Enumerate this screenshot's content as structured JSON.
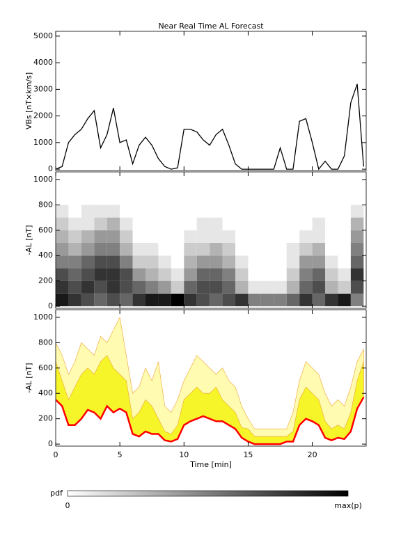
{
  "chart_data": [
    {
      "type": "line",
      "title": "Near Real Time AL Forecast",
      "ylabel": "VBs [nT×km/s]",
      "color": "#000000",
      "xlim": [
        0,
        24.2
      ],
      "xticks": [
        0,
        5,
        10,
        15,
        20
      ],
      "ylim": [
        -50,
        5180
      ],
      "yticks": [
        0,
        1000,
        2000,
        3000,
        4000,
        5000
      ],
      "x": [
        0,
        0.5,
        1,
        1.5,
        2,
        2.5,
        3,
        3.5,
        4,
        4.5,
        5,
        5.5,
        6,
        6.5,
        7,
        7.5,
        8,
        8.5,
        9,
        9.5,
        10,
        10.5,
        11,
        11.5,
        12,
        12.5,
        13,
        13.5,
        14,
        14.5,
        15,
        15.5,
        16,
        16.5,
        17,
        17.5,
        18,
        18.5,
        19,
        19.5,
        20,
        20.5,
        21,
        21.5,
        22,
        22.5,
        23,
        23.5,
        24
      ],
      "values": [
        0,
        100,
        1000,
        1300,
        1500,
        1900,
        2200,
        800,
        1300,
        2300,
        1000,
        1100,
        200,
        900,
        1200,
        900,
        400,
        100,
        0,
        50,
        1500,
        1500,
        1400,
        1100,
        900,
        1300,
        1500,
        900,
        200,
        0,
        0,
        0,
        0,
        0,
        0,
        800,
        0,
        0,
        1800,
        1900,
        1000,
        0,
        300,
        0,
        0,
        500,
        2500,
        3200,
        100
      ]
    },
    {
      "type": "heatmap",
      "ylabel": "-AL [nT]",
      "xlim": [
        0,
        24.2
      ],
      "xticks": [
        0,
        5,
        10,
        15,
        20
      ],
      "ylim": [
        -16,
        1060
      ],
      "yticks": [
        0,
        200,
        400,
        600,
        800,
        1000
      ],
      "x_bins": [
        0,
        1,
        2,
        3,
        4,
        5,
        6,
        7,
        8,
        9,
        10,
        11,
        12,
        13,
        14,
        15,
        16,
        17,
        18,
        19,
        20,
        21,
        22,
        23,
        24
      ],
      "y_bins": [
        0,
        100,
        200,
        300,
        400,
        500,
        600,
        700,
        800
      ],
      "z": [
        [
          0.9,
          0.8,
          0.7,
          0.6,
          0.7,
          0.6,
          0.8,
          0.9,
          0.9,
          1.0,
          0.8,
          0.7,
          0.6,
          0.7,
          0.8,
          0.5,
          0.5,
          0.5,
          0.6,
          0.8,
          0.6,
          0.8,
          0.9,
          0.5
        ],
        [
          0.8,
          0.7,
          0.8,
          0.7,
          0.8,
          0.7,
          0.6,
          0.5,
          0.4,
          0.2,
          0.6,
          0.7,
          0.7,
          0.6,
          0.3,
          0.1,
          0.1,
          0.1,
          0.3,
          0.6,
          0.7,
          0.3,
          0.2,
          0.7
        ],
        [
          0.7,
          0.6,
          0.7,
          0.8,
          0.8,
          0.7,
          0.4,
          0.3,
          0.2,
          0.1,
          0.4,
          0.6,
          0.6,
          0.5,
          0.2,
          0,
          0,
          0,
          0.2,
          0.5,
          0.6,
          0.2,
          0.1,
          0.8
        ],
        [
          0.5,
          0.5,
          0.6,
          0.7,
          0.7,
          0.5,
          0.2,
          0.2,
          0.1,
          0,
          0.3,
          0.4,
          0.4,
          0.3,
          0.1,
          0,
          0,
          0,
          0.1,
          0.4,
          0.4,
          0.1,
          0,
          0.6
        ],
        [
          0.4,
          0.3,
          0.4,
          0.5,
          0.5,
          0.3,
          0.1,
          0.1,
          0,
          0,
          0.2,
          0.2,
          0.3,
          0.2,
          0,
          0,
          0,
          0,
          0.1,
          0.2,
          0.3,
          0,
          0,
          0.5
        ],
        [
          0.3,
          0.2,
          0.3,
          0.4,
          0.4,
          0.2,
          0,
          0,
          0,
          0,
          0.1,
          0.1,
          0.1,
          0.1,
          0,
          0,
          0,
          0,
          0,
          0.1,
          0.1,
          0,
          0,
          0.4
        ],
        [
          0.2,
          0.1,
          0.1,
          0.2,
          0.3,
          0.1,
          0,
          0,
          0,
          0,
          0,
          0.1,
          0.1,
          0,
          0,
          0,
          0,
          0,
          0,
          0,
          0.1,
          0,
          0,
          0.3
        ],
        [
          0.1,
          0,
          0.1,
          0.1,
          0.1,
          0,
          0,
          0,
          0,
          0,
          0,
          0,
          0,
          0,
          0,
          0,
          0,
          0,
          0,
          0,
          0,
          0,
          0,
          0.1
        ]
      ],
      "colorbar": {
        "label": "pdf",
        "min_label": "0",
        "max_label": "max(p)"
      }
    },
    {
      "type": "band",
      "ylabel": "-AL [nT]",
      "xlabel": "Time [min]",
      "xlim": [
        0,
        24.2
      ],
      "xticks": [
        0,
        5,
        10,
        15,
        20
      ],
      "ylim": [
        -16,
        1060
      ],
      "yticks": [
        0,
        200,
        400,
        600,
        800,
        1000
      ],
      "x": [
        0,
        0.5,
        1,
        1.5,
        2,
        2.5,
        3,
        3.5,
        4,
        4.5,
        5,
        5.5,
        6,
        6.5,
        7,
        7.5,
        8,
        8.5,
        9,
        9.5,
        10,
        10.5,
        11,
        11.5,
        12,
        12.5,
        13,
        13.5,
        14,
        14.5,
        15,
        15.5,
        16,
        16.5,
        17,
        17.5,
        18,
        18.5,
        19,
        19.5,
        20,
        20.5,
        21,
        21.5,
        22,
        22.5,
        23,
        23.5,
        24
      ],
      "bands": [
        {
          "color": "#fffbb0",
          "values": [
            800,
            700,
            550,
            650,
            800,
            750,
            700,
            850,
            800,
            900,
            1000,
            700,
            400,
            450,
            600,
            500,
            650,
            300,
            250,
            350,
            500,
            600,
            700,
            650,
            600,
            550,
            600,
            500,
            450,
            300,
            200,
            120,
            120,
            120,
            120,
            120,
            120,
            250,
            500,
            650,
            600,
            550,
            400,
            300,
            350,
            300,
            450,
            650,
            750
          ]
        },
        {
          "color": "#f5f52a",
          "values": [
            650,
            500,
            350,
            450,
            550,
            600,
            550,
            650,
            700,
            600,
            550,
            500,
            200,
            250,
            350,
            300,
            200,
            100,
            80,
            150,
            350,
            400,
            450,
            400,
            400,
            450,
            350,
            300,
            250,
            130,
            120,
            60,
            60,
            60,
            60,
            60,
            60,
            100,
            350,
            450,
            400,
            350,
            180,
            120,
            150,
            120,
            250,
            500,
            650
          ]
        }
      ],
      "line": {
        "color": "#ff0000",
        "values": [
          350,
          300,
          150,
          150,
          200,
          270,
          250,
          200,
          300,
          250,
          280,
          250,
          80,
          60,
          100,
          80,
          80,
          30,
          20,
          40,
          150,
          180,
          200,
          220,
          200,
          180,
          180,
          150,
          120,
          50,
          20,
          0,
          0,
          0,
          0,
          0,
          20,
          20,
          150,
          200,
          180,
          150,
          50,
          30,
          50,
          40,
          100,
          280,
          370
        ]
      }
    }
  ]
}
